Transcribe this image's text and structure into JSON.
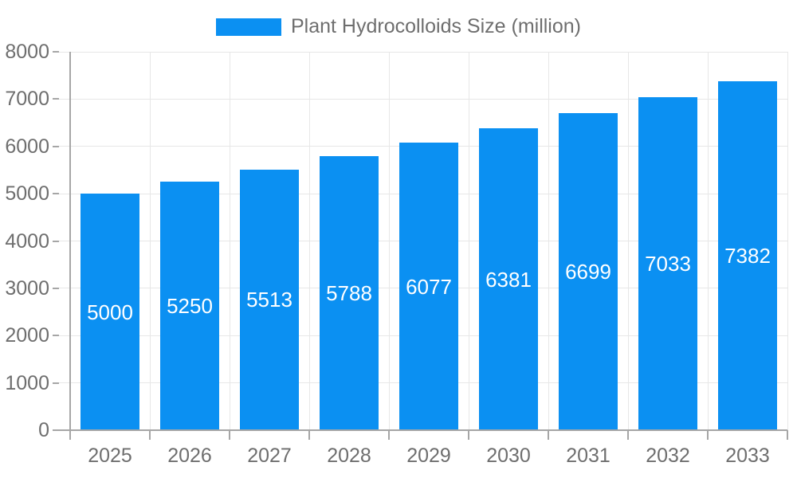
{
  "chart_data": {
    "type": "bar",
    "title": "Plant Hydrocolloids Size (million)",
    "series_name": "Plant Hydrocolloids Size (million)",
    "categories": [
      "2025",
      "2026",
      "2027",
      "2028",
      "2029",
      "2030",
      "2031",
      "2032",
      "2033"
    ],
    "values": [
      5000,
      5250,
      5513,
      5788,
      6077,
      6381,
      6699,
      7033,
      7382
    ],
    "value_labels": [
      "5000",
      "5250",
      "5513",
      "5788",
      "6077",
      "6381",
      "6699",
      "7033",
      "7382"
    ],
    "ytick_labels": [
      "0",
      "1000",
      "2000",
      "3000",
      "4000",
      "5000",
      "6000",
      "7000",
      "8000"
    ],
    "ylim": [
      0,
      8000
    ],
    "ytick_interval": 1000,
    "grid": true,
    "legend_position": "top",
    "xlabel": "",
    "ylabel": "",
    "colors": {
      "bar": "#0b90f2",
      "value_label": "#ffffff",
      "axis_label": "#6e6e6e",
      "gridline": "#e7e7e7",
      "axis_line": "#a6a6a6"
    }
  }
}
